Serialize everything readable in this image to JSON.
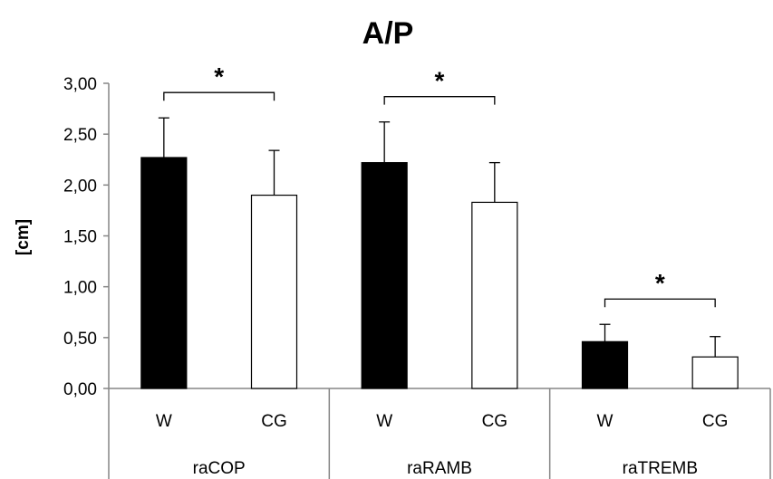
{
  "chart_data": {
    "type": "bar",
    "title": "A/P",
    "ylabel": "[cm]",
    "xlabel": "",
    "ylim": [
      0,
      3
    ],
    "y_ticks": [
      "0,00",
      "0,50",
      "1,00",
      "1,50",
      "2,00",
      "2,50",
      "3,00"
    ],
    "grid": false,
    "groups": [
      {
        "name": "raCOP",
        "bars": [
          {
            "label": "W",
            "value": 2.27,
            "error": 0.39,
            "fill": "#000000"
          },
          {
            "label": "CG",
            "value": 1.9,
            "error": 0.44,
            "fill": "#ffffff"
          }
        ],
        "significance": "*"
      },
      {
        "name": "raRAMB",
        "bars": [
          {
            "label": "W",
            "value": 2.22,
            "error": 0.4,
            "fill": "#000000"
          },
          {
            "label": "CG",
            "value": 1.83,
            "error": 0.39,
            "fill": "#ffffff"
          }
        ],
        "significance": "*"
      },
      {
        "name": "raTREMB",
        "bars": [
          {
            "label": "W",
            "value": 0.46,
            "error": 0.17,
            "fill": "#000000"
          },
          {
            "label": "CG",
            "value": 0.31,
            "error": 0.2,
            "fill": "#ffffff"
          }
        ],
        "significance": "*"
      }
    ]
  }
}
